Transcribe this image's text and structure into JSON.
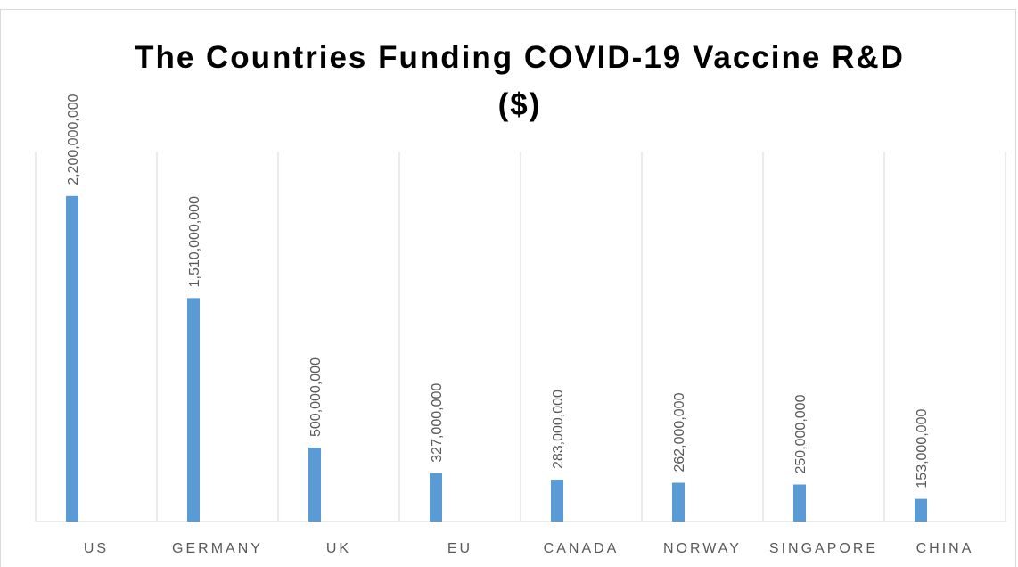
{
  "chart_data": {
    "type": "bar",
    "title": "The Countries Funding COVID-19 Vaccine R&D ($)",
    "categories": [
      "US",
      "GERMANY",
      "UK",
      "EU",
      "CANADA",
      "NORWAY",
      "SINGAPORE",
      "CHINA"
    ],
    "values": [
      2200000000,
      1510000000,
      500000000,
      327000000,
      283000000,
      262000000,
      250000000,
      153000000
    ],
    "value_labels": [
      "2,200,000,000",
      "1,510,000,000",
      "500,000,000",
      "327,000,000",
      "283,000,000",
      "262,000,000",
      "250,000,000",
      "153,000,000"
    ],
    "color": "#5b9bd5",
    "ylim": [
      0,
      2500000000
    ]
  }
}
